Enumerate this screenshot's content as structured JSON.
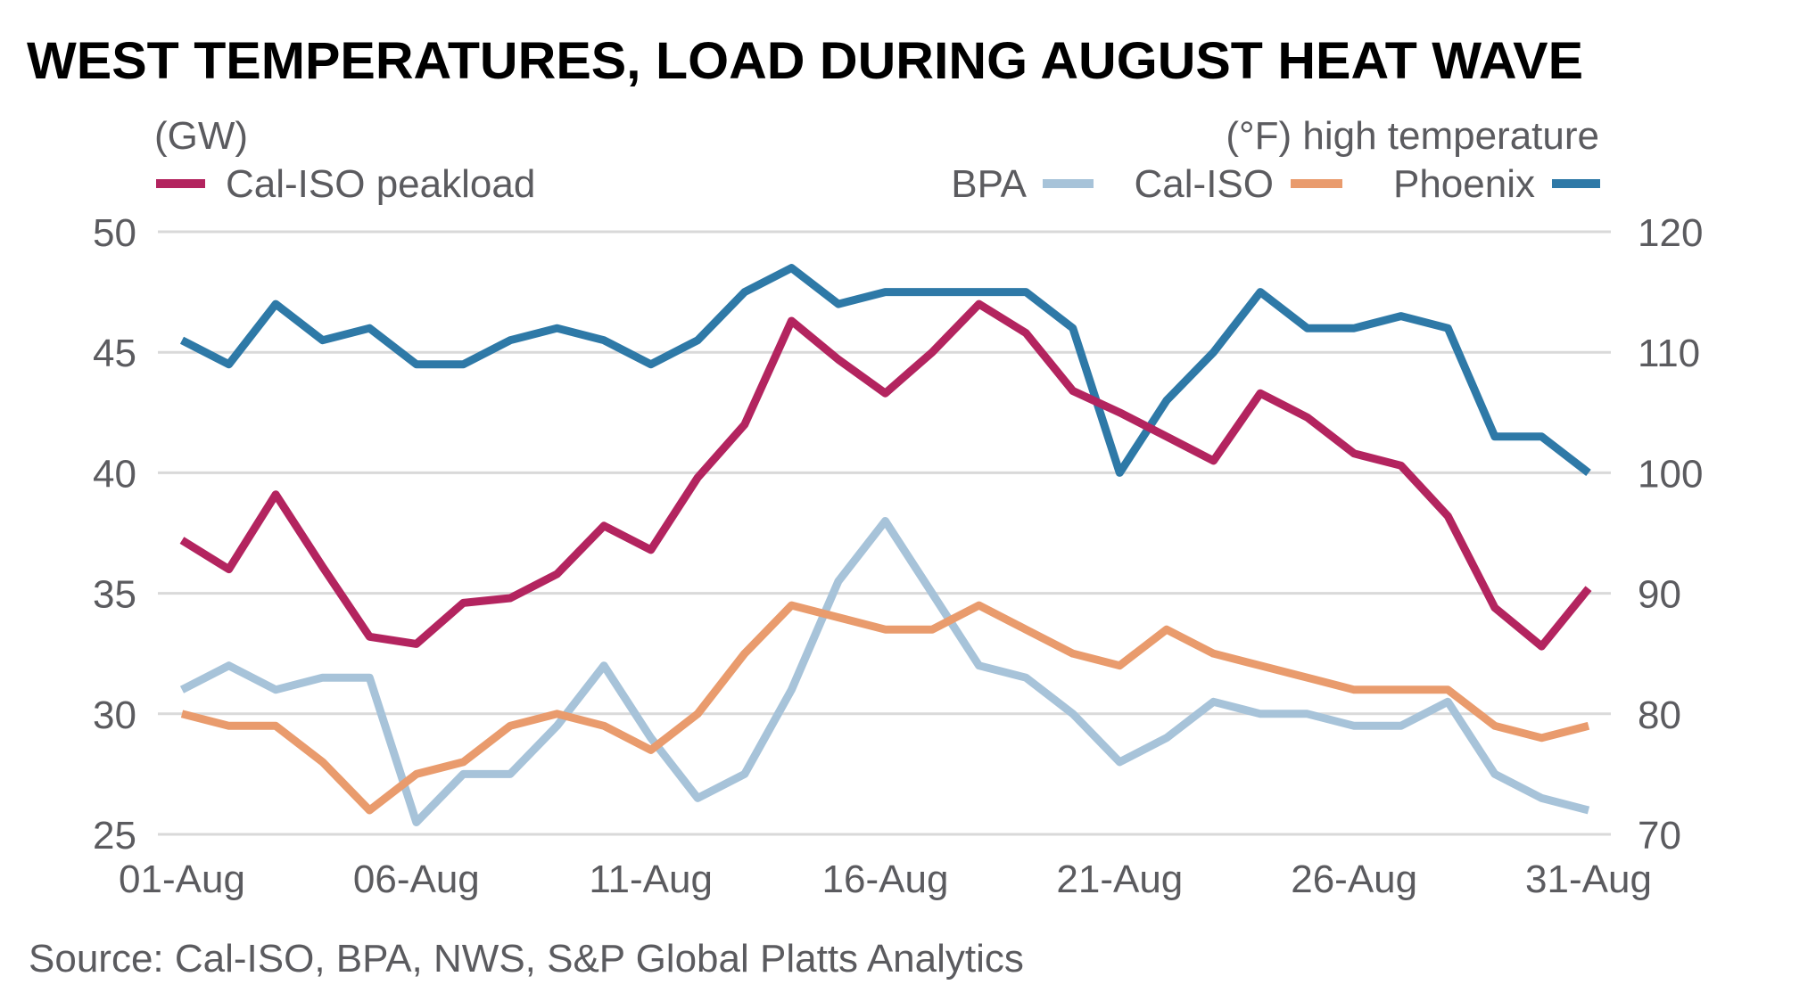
{
  "chart_data": {
    "type": "line",
    "title": "WEST TEMPERATURES, LOAD DURING AUGUST HEAT WAVE",
    "left_axis": {
      "label": "(GW)",
      "ylim": [
        25,
        50
      ],
      "ticks": [
        "50",
        "45",
        "40",
        "35",
        "30",
        "25"
      ]
    },
    "right_axis": {
      "label": "(°F) high temperature",
      "ylim": [
        70,
        120
      ],
      "ticks": [
        "120",
        "110",
        "100",
        "90",
        "80",
        "70"
      ]
    },
    "x_ticks": [
      "01-Aug",
      "06-Aug",
      "11-Aug",
      "16-Aug",
      "21-Aug",
      "26-Aug",
      "31-Aug"
    ],
    "x_days": [
      1,
      2,
      3,
      4,
      5,
      6,
      7,
      8,
      9,
      10,
      11,
      12,
      13,
      14,
      15,
      16,
      17,
      18,
      19,
      20,
      21,
      22,
      23,
      24,
      25,
      26,
      27,
      28,
      29,
      30,
      31
    ],
    "grid": true,
    "series": [
      {
        "name": "Cal-ISO peakload",
        "axis": "left",
        "color": "#b3245f",
        "values": [
          37.2,
          36.0,
          39.1,
          36.1,
          33.2,
          32.9,
          34.6,
          34.8,
          35.8,
          37.8,
          36.8,
          39.8,
          42.0,
          46.3,
          44.7,
          43.3,
          45.0,
          47.0,
          45.8,
          43.4,
          42.5,
          41.5,
          40.5,
          43.3,
          42.3,
          40.8,
          40.3,
          38.2,
          34.4,
          32.8,
          35.2
        ]
      },
      {
        "name": "BPA",
        "axis": "right",
        "color": "#a7c3d9",
        "values": [
          82,
          84,
          82,
          83,
          83,
          71,
          75,
          75,
          79,
          84,
          78,
          73,
          75,
          82,
          91,
          96,
          90,
          84,
          83,
          80,
          76,
          78,
          81,
          80,
          80,
          79,
          79,
          81,
          75,
          73,
          72
        ]
      },
      {
        "name": "Cal-ISO",
        "axis": "right",
        "color": "#e99b6d",
        "values": [
          80,
          79,
          79,
          76,
          72,
          75,
          76,
          79,
          80,
          79,
          77,
          80,
          85,
          89,
          88,
          87,
          87,
          89,
          87,
          85,
          84,
          87,
          85,
          84,
          83,
          82,
          82,
          82,
          79,
          78,
          79
        ]
      },
      {
        "name": "Phoenix",
        "axis": "right",
        "color": "#2e79a7",
        "values": [
          111,
          109,
          114,
          111,
          112,
          109,
          109,
          111,
          112,
          111,
          109,
          111,
          115,
          117,
          114,
          115,
          115,
          115,
          115,
          112,
          100,
          106,
          110,
          115,
          112,
          112,
          113,
          112,
          103,
          103,
          100
        ]
      }
    ],
    "source": "Source: Cal-ISO, BPA, NWS, S&P Global Platts Analytics"
  }
}
